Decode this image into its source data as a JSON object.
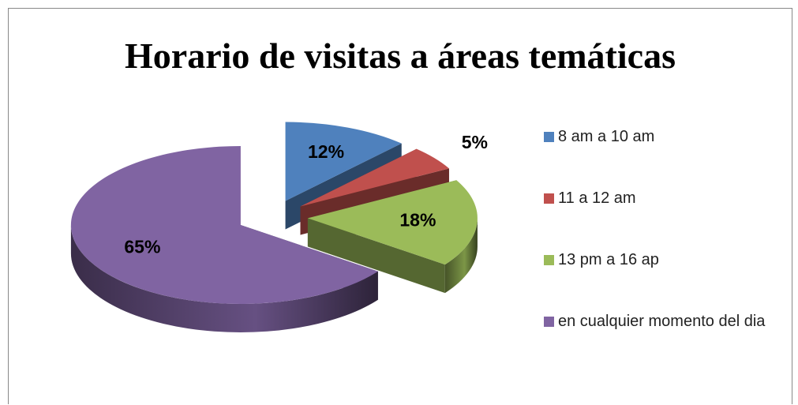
{
  "chart_data": {
    "type": "pie",
    "title": "Horario de visitas a áreas temáticas",
    "categories": [
      "8 am a 10 am",
      "11 a 12 am",
      "13 pm a 16 ap",
      "en cualquier momento del dia"
    ],
    "values": [
      12,
      5,
      18,
      65
    ],
    "value_labels": [
      "12%",
      "5%",
      "18%",
      "65%"
    ],
    "colors": [
      "#4f81bd",
      "#c0504d",
      "#9bbb59",
      "#8064a2"
    ],
    "legend": "right"
  }
}
